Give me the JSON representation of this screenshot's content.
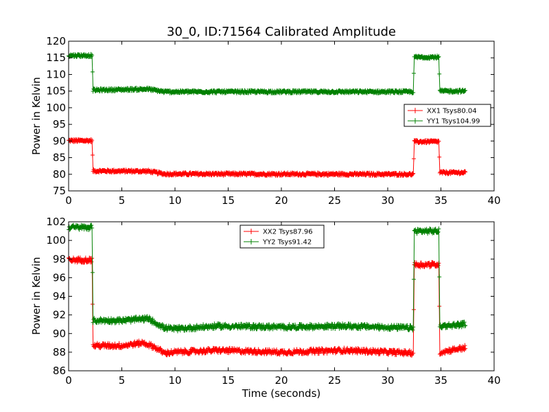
{
  "chart_data": [
    {
      "type": "line",
      "title": "30_0, ID:71564 Calibrated Amplitude",
      "xlabel": "",
      "ylabel": "Power in Kelvin",
      "xlim": [
        0,
        40
      ],
      "ylim": [
        75,
        120
      ],
      "x_ticks": [
        0,
        5,
        10,
        15,
        20,
        25,
        30,
        35,
        40
      ],
      "y_ticks": [
        75,
        80,
        85,
        90,
        95,
        100,
        105,
        110,
        115,
        120
      ],
      "grid": false,
      "legend_position": "center-right",
      "series": [
        {
          "name": "XX1 Tsys80.04",
          "color": "#ff0000",
          "noise": 0.35,
          "points": [
            [
              0,
              90.1
            ],
            [
              2.2,
              90.1
            ],
            [
              2.3,
              81.0
            ],
            [
              7.5,
              80.9
            ],
            [
              9.0,
              80.1
            ],
            [
              32.4,
              80.0
            ],
            [
              32.5,
              89.8
            ],
            [
              34.8,
              89.8
            ],
            [
              34.9,
              80.5
            ],
            [
              37.3,
              80.5
            ]
          ]
        },
        {
          "name": "YY1 Tsys104.99",
          "color": "#008000",
          "noise": 0.35,
          "points": [
            [
              0,
              115.7
            ],
            [
              2.2,
              115.7
            ],
            [
              2.3,
              105.3
            ],
            [
              7.5,
              105.6
            ],
            [
              9.0,
              104.8
            ],
            [
              32.4,
              104.8
            ],
            [
              32.5,
              115.2
            ],
            [
              34.8,
              115.2
            ],
            [
              34.9,
              105.0
            ],
            [
              37.3,
              105.0
            ]
          ]
        }
      ]
    },
    {
      "type": "line",
      "title": "",
      "xlabel": "Time (seconds)",
      "ylabel": "Power in Kelvin",
      "xlim": [
        0,
        40
      ],
      "ylim": [
        86,
        102
      ],
      "x_ticks": [
        0,
        5,
        10,
        15,
        20,
        25,
        30,
        35,
        40
      ],
      "y_ticks": [
        86,
        88,
        90,
        92,
        94,
        96,
        98,
        100,
        102
      ],
      "grid": false,
      "legend_position": "top-center",
      "series": [
        {
          "name": "XX2 Tsys87.96",
          "color": "#ff0000",
          "noise": 0.25,
          "points": [
            [
              0,
              97.9
            ],
            [
              2.2,
              97.9
            ],
            [
              2.3,
              88.7
            ],
            [
              5.0,
              88.7
            ],
            [
              7.0,
              89.0
            ],
            [
              8.0,
              88.6
            ],
            [
              9.0,
              87.9
            ],
            [
              10.0,
              88.0
            ],
            [
              14.0,
              88.2
            ],
            [
              20.0,
              88.0
            ],
            [
              26.0,
              88.2
            ],
            [
              32.4,
              87.9
            ],
            [
              32.5,
              97.4
            ],
            [
              34.8,
              97.4
            ],
            [
              34.9,
              88.0
            ],
            [
              37.3,
              88.5
            ]
          ]
        },
        {
          "name": "YY2 Tsys91.42",
          "color": "#008000",
          "noise": 0.25,
          "points": [
            [
              0,
              101.4
            ],
            [
              2.2,
              101.4
            ],
            [
              2.3,
              91.4
            ],
            [
              5.0,
              91.4
            ],
            [
              7.5,
              91.6
            ],
            [
              9.0,
              90.6
            ],
            [
              10.0,
              90.5
            ],
            [
              14.0,
              90.8
            ],
            [
              20.0,
              90.7
            ],
            [
              26.0,
              90.8
            ],
            [
              32.4,
              90.6
            ],
            [
              32.5,
              101.0
            ],
            [
              34.8,
              101.0
            ],
            [
              34.9,
              90.8
            ],
            [
              37.3,
              91.0
            ]
          ]
        }
      ]
    }
  ]
}
